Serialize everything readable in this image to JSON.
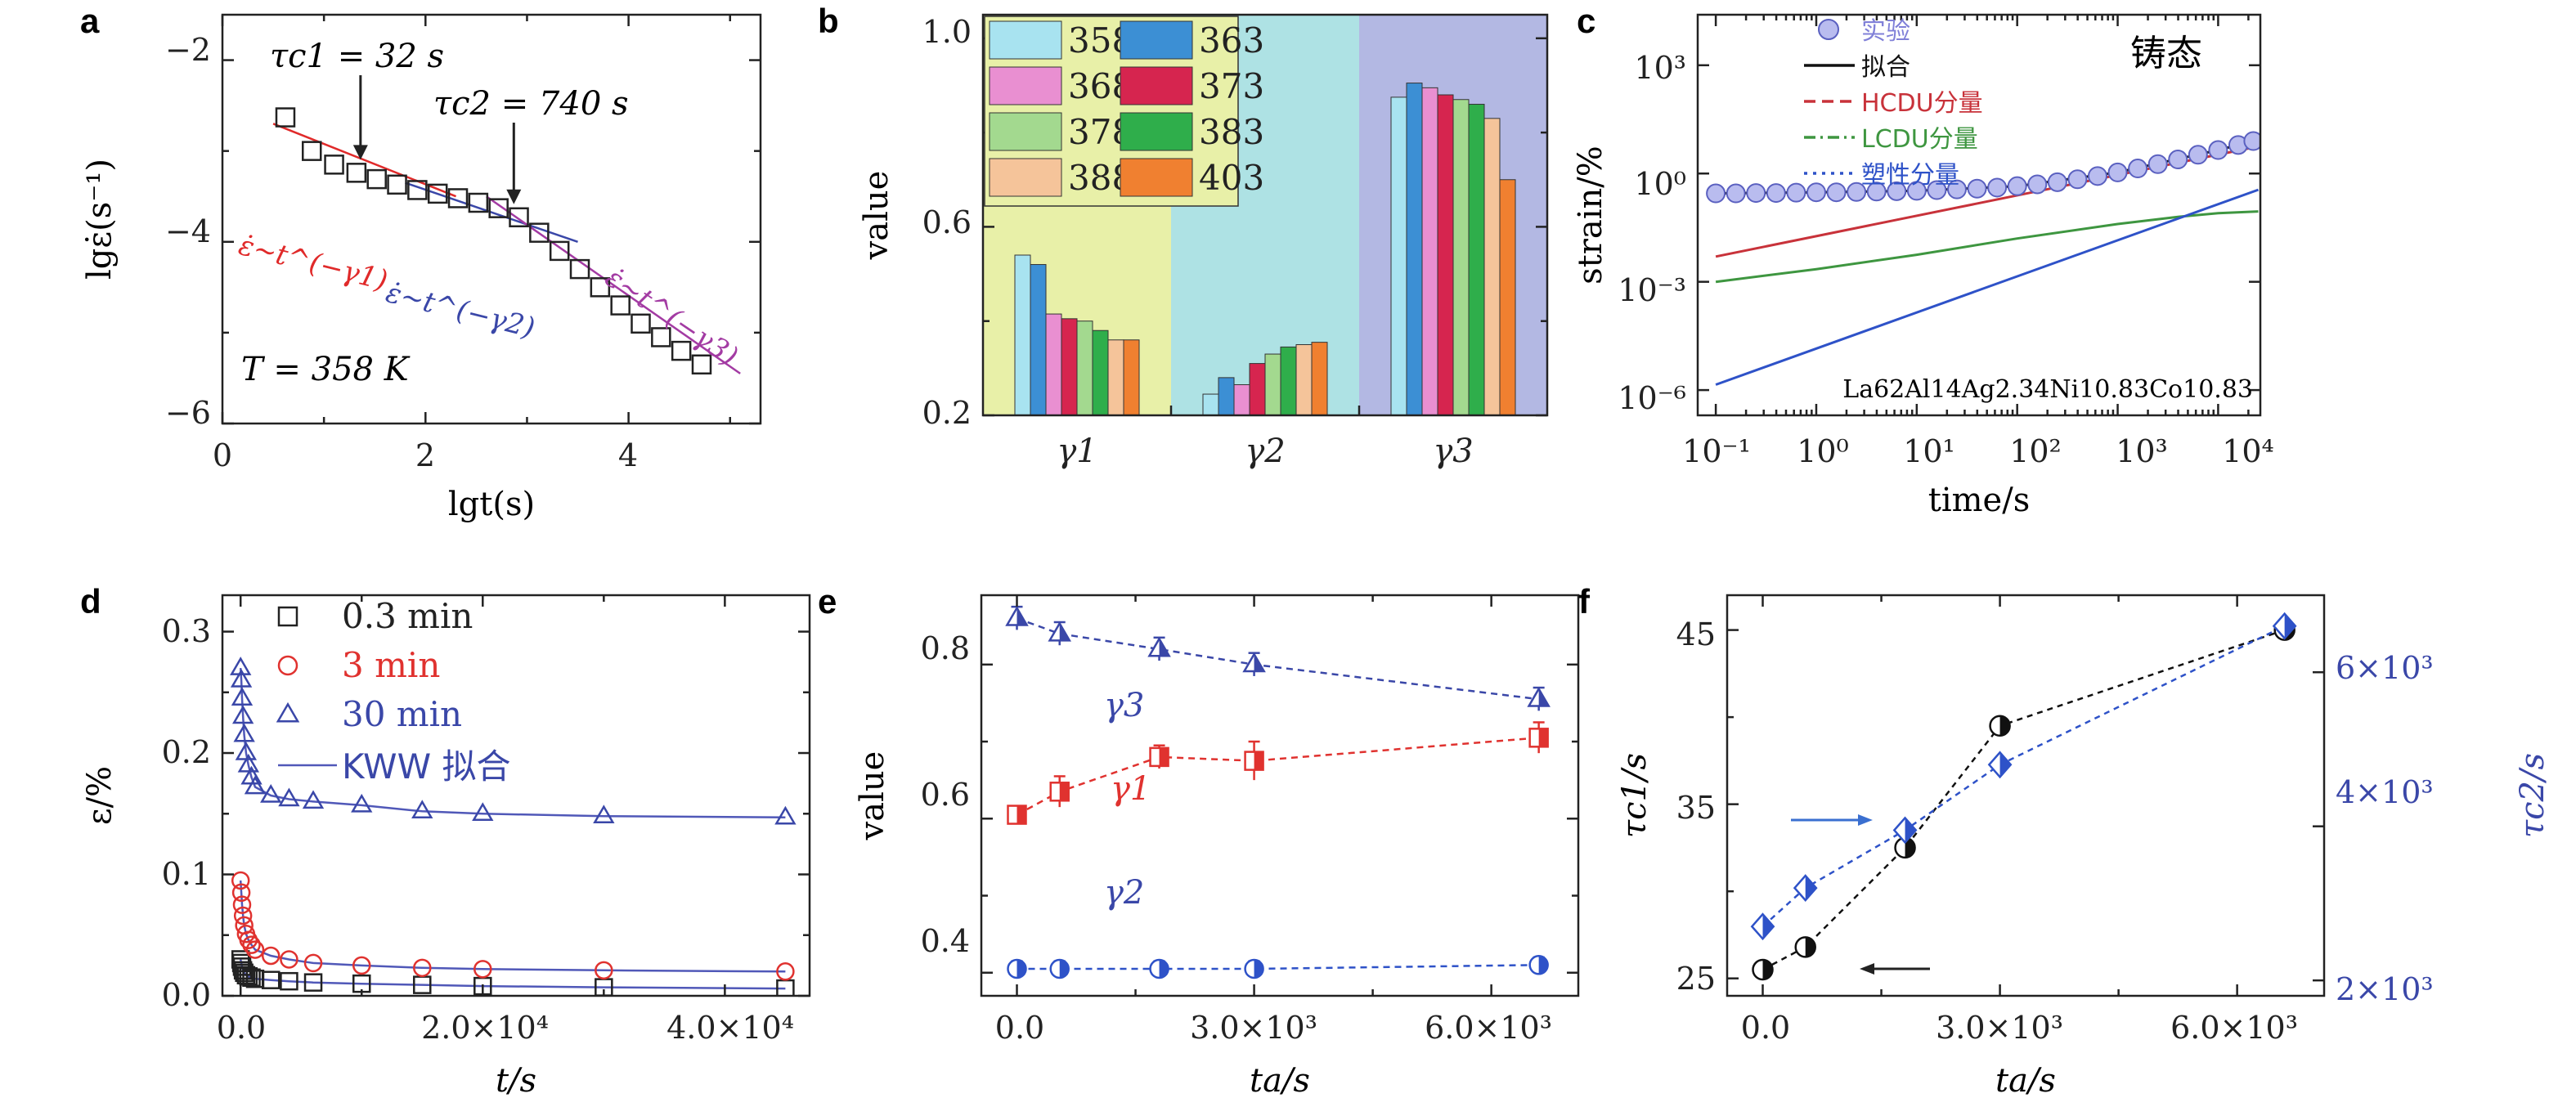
{
  "panels": {
    "a": {
      "label": "a",
      "chart_data": {
        "type": "scatter",
        "xlabel": "lgt(s)",
        "ylabel": "lgε̇(s⁻¹)",
        "xlim": [
          0,
          5.3
        ],
        "ylim": [
          -6,
          -1.5
        ],
        "xticks": [
          "0",
          "2",
          "4"
        ],
        "yticks": [
          "−2",
          "−4",
          "−6"
        ],
        "points": {
          "x": [
            0.62,
            0.88,
            1.1,
            1.32,
            1.52,
            1.72,
            1.92,
            2.12,
            2.32,
            2.52,
            2.72,
            2.92,
            3.12,
            3.32,
            3.52,
            3.72,
            3.92,
            4.12,
            4.32,
            4.52,
            4.72
          ],
          "y": [
            -2.63,
            -3.0,
            -3.15,
            -3.24,
            -3.31,
            -3.37,
            -3.43,
            -3.47,
            -3.52,
            -3.57,
            -3.63,
            -3.73,
            -3.9,
            -4.1,
            -4.3,
            -4.5,
            -4.7,
            -4.9,
            -5.05,
            -5.2,
            -5.35
          ]
        },
        "fits": [
          {
            "label": "ε̇~t^(−γ1)",
            "color": "#e02a2a",
            "x": [
              0.5,
              2.3
            ],
            "y": [
              -2.7,
              -3.5
            ]
          },
          {
            "label": "ε̇~t^(−γ2)",
            "color": "#3a47a8",
            "x": [
              1.8,
              3.5
            ],
            "y": [
              -3.35,
              -4.0
            ]
          },
          {
            "label": "ε̇~t^(−γ3)",
            "color": "#a33ba3",
            "x": [
              2.6,
              5.1
            ],
            "y": [
              -3.5,
              -5.45
            ]
          }
        ],
        "annotations": [
          {
            "text": "τc1 = 32 s",
            "x": 1.36
          },
          {
            "text": "τc2 = 740 s",
            "x": 2.87
          }
        ],
        "note": "T = 358 K"
      }
    },
    "b": {
      "label": "b",
      "chart_data": {
        "type": "bar",
        "ylabel": "value",
        "ylim": [
          0.2,
          1.05
        ],
        "yticks": [
          "0.2",
          "0.6",
          "1.0"
        ],
        "groups": [
          "γ1",
          "γ2",
          "γ3"
        ],
        "group_bg": [
          "#e8f0a8",
          "#aee2e4",
          "#b3b8e3"
        ],
        "series": [
          {
            "name": "358",
            "color": "#a8e3f0",
            "values": [
              0.54,
              0.245,
              0.875
            ]
          },
          {
            "name": "363",
            "color": "#3c8fd4",
            "values": [
              0.52,
              0.28,
              0.905
            ]
          },
          {
            "name": "368",
            "color": "#e98fd1",
            "values": [
              0.415,
              0.265,
              0.895
            ]
          },
          {
            "name": "373",
            "color": "#d6254f",
            "values": [
              0.405,
              0.31,
              0.88
            ]
          },
          {
            "name": "378",
            "color": "#a3d98f",
            "values": [
              0.4,
              0.33,
              0.87
            ]
          },
          {
            "name": "383",
            "color": "#2fae4b",
            "values": [
              0.38,
              0.345,
              0.86
            ]
          },
          {
            "name": "388",
            "color": "#f5c49a",
            "values": [
              0.36,
              0.35,
              0.83
            ]
          },
          {
            "name": "403",
            "color": "#f08030",
            "values": [
              0.36,
              0.355,
              0.7
            ]
          }
        ]
      }
    },
    "c": {
      "label": "c",
      "title": "铸态",
      "chart_data": {
        "type": "line",
        "xscale": "log",
        "yscale": "log",
        "xlabel": "time/s",
        "ylabel": "strain/%",
        "xticks": [
          "10⁻¹",
          "10⁰",
          "10¹",
          "10²",
          "10³",
          "10⁴"
        ],
        "yticks": [
          "10³",
          "10⁰",
          "10⁻³",
          "10⁻⁶"
        ],
        "composition": "La62Al14Ag2.34Ni10.83Co10.83",
        "series": [
          {
            "name": "实验",
            "color": "#8080d8",
            "style": "markers",
            "x": [
              -1,
              -0.8,
              -0.6,
              -0.4,
              -0.2,
              0,
              0.2,
              0.4,
              0.6,
              0.8,
              1,
              1.2,
              1.4,
              1.6,
              1.8,
              2,
              2.2,
              2.4,
              2.6,
              2.8,
              3,
              3.2,
              3.4,
              3.6,
              3.8,
              4,
              4.2,
              4.35
            ],
            "y": [
              -0.55,
              -0.55,
              -0.54,
              -0.54,
              -0.53,
              -0.52,
              -0.52,
              -0.51,
              -0.5,
              -0.49,
              -0.48,
              -0.46,
              -0.44,
              -0.42,
              -0.39,
              -0.35,
              -0.3,
              -0.24,
              -0.16,
              -0.07,
              0.03,
              0.14,
              0.26,
              0.39,
              0.52,
              0.65,
              0.79,
              0.9
            ]
          },
          {
            "name": "拟合",
            "color": "#111111",
            "style": "solid",
            "x": [
              -1,
              0,
              1,
              2,
              3,
              4,
              4.4
            ],
            "y": [
              -0.55,
              -0.52,
              -0.48,
              -0.35,
              0.03,
              0.65,
              0.93
            ]
          },
          {
            "name": "HCDU分量",
            "color": "#c8323a",
            "style": "solid",
            "x": [
              -1,
              4.4
            ],
            "y": [
              -2.3,
              0.75
            ]
          },
          {
            "name": "LCDU分量",
            "color": "#3e9640",
            "style": "solid",
            "x": [
              -1,
              0,
              1,
              2,
              3,
              3.6,
              4,
              4.4
            ],
            "y": [
              -3.0,
              -2.65,
              -2.25,
              -1.8,
              -1.4,
              -1.2,
              -1.1,
              -1.05
            ]
          },
          {
            "name": "塑性分量",
            "color": "#2e52c8",
            "style": "solid",
            "x": [
              -1,
              4.4
            ],
            "y": [
              -5.85,
              -0.45
            ]
          }
        ]
      }
    },
    "d": {
      "label": "d",
      "chart_data": {
        "type": "scatter",
        "xlabel": "t/s",
        "ylabel": "ε/%",
        "xlim": [
          -1500,
          47000
        ],
        "ylim": [
          0,
          0.33
        ],
        "xticks": [
          "0.0",
          "2.0×10⁴",
          "4.0×10⁴"
        ],
        "yticks": [
          "0.0",
          "0.1",
          "0.2",
          "0.3"
        ],
        "series": [
          {
            "name": "0.3 min",
            "color": "#222222",
            "marker": "square",
            "x": [
              0,
              60,
              120,
              200,
              300,
              450,
              650,
              900,
              1200,
              2500,
              4000,
              6000,
              10000,
              15000,
              20000,
              30000,
              45000
            ],
            "y": [
              0.03,
              0.027,
              0.024,
              0.021,
              0.019,
              0.017,
              0.016,
              0.015,
              0.014,
              0.013,
              0.012,
              0.011,
              0.01,
              0.009,
              0.008,
              0.007,
              0.006
            ]
          },
          {
            "name": "3 min",
            "color": "#e0322f",
            "marker": "circle",
            "x": [
              0,
              60,
              120,
              200,
              300,
              450,
              650,
              900,
              1200,
              2500,
              4000,
              6000,
              10000,
              15000,
              20000,
              30000,
              45000
            ],
            "y": [
              0.095,
              0.085,
              0.075,
              0.066,
              0.058,
              0.051,
              0.046,
              0.042,
              0.038,
              0.033,
              0.03,
              0.027,
              0.025,
              0.023,
              0.022,
              0.021,
              0.02
            ]
          },
          {
            "name": "30 min",
            "color": "#3a47a8",
            "marker": "triangle",
            "x": [
              0,
              60,
              120,
              200,
              300,
              450,
              650,
              900,
              1200,
              2500,
              4000,
              6000,
              10000,
              15000,
              20000,
              30000,
              45000
            ],
            "y": [
              0.27,
              0.26,
              0.245,
              0.23,
              0.215,
              0.2,
              0.19,
              0.18,
              0.172,
              0.165,
              0.162,
              0.16,
              0.157,
              0.152,
              0.15,
              0.148,
              0.147
            ]
          }
        ],
        "legend_fit": "KWW 拟合"
      }
    },
    "e": {
      "label": "e",
      "chart_data": {
        "type": "scatter",
        "xlabel": "ta/s",
        "ylabel": "value",
        "xlim": [
          -450,
          7100
        ],
        "ylim": [
          0.37,
          0.89
        ],
        "xticks": [
          "0.0",
          "3.0×10³",
          "6.0×10³"
        ],
        "yticks": [
          "0.4",
          "0.6",
          "0.8"
        ],
        "series": [
          {
            "name": "γ3",
            "color": "#3a47a8",
            "marker": "triangle",
            "x": [
              0,
              540,
              1800,
              3000,
              6600
            ],
            "y": [
              0.86,
              0.84,
              0.82,
              0.8,
              0.755
            ],
            "err": [
              0.015,
              0.015,
              0.015,
              0.015,
              0.015
            ]
          },
          {
            "name": "γ1",
            "color": "#e0322f",
            "marker": "square",
            "x": [
              0,
              540,
              1800,
              3000,
              6600
            ],
            "y": [
              0.605,
              0.635,
              0.68,
              0.675,
              0.705
            ],
            "err": [
              0.01,
              0.02,
              0.015,
              0.025,
              0.02
            ]
          },
          {
            "name": "γ2",
            "color": "#2e52c8",
            "marker": "circle",
            "x": [
              0,
              540,
              1800,
              3000,
              6600
            ],
            "y": [
              0.405,
              0.405,
              0.405,
              0.405,
              0.41
            ],
            "err": [
              0.01,
              0.01,
              0.01,
              0.01,
              0.01
            ]
          }
        ]
      }
    },
    "f": {
      "label": "f",
      "chart_data": {
        "type": "scatter",
        "xlabel": "ta/s",
        "ylabel": "τc1/s",
        "ylabel_right": "τc2/s",
        "xlim": [
          -450,
          7100
        ],
        "ylim": [
          24,
          47
        ],
        "ylim_right": [
          1800,
          7000
        ],
        "xticks": [
          "0.0",
          "3.0×10³",
          "6.0×10³"
        ],
        "yticks": [
          "25",
          "35",
          "45"
        ],
        "yticks_right": [
          "2×10³",
          "4×10³",
          "6×10³"
        ],
        "series": [
          {
            "name": "τc1",
            "color": "#111111",
            "axis": "left",
            "marker": "circle",
            "x": [
              0,
              540,
              1800,
              3000,
              6600
            ],
            "y": [
              25.5,
              26.8,
              32.5,
              39.5,
              45.0
            ]
          },
          {
            "name": "τc2",
            "color": "#2e52c8",
            "axis": "right",
            "marker": "diamond",
            "x": [
              0,
              540,
              1800,
              3000,
              6600
            ],
            "y": [
              2700,
              3200,
              3950,
              4800,
              6600
            ]
          }
        ]
      }
    }
  }
}
